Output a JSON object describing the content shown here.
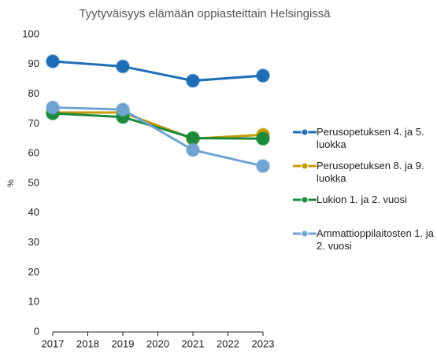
{
  "chart_data": {
    "type": "line",
    "title": "Tyytyväisyys elämään oppiasteittain Helsingissä",
    "y_label": "%",
    "x": [
      2017,
      2019,
      2021,
      2023
    ],
    "xlim": [
      2017,
      2023
    ],
    "xticks": [
      2017,
      2018,
      2019,
      2020,
      2021,
      2022,
      2023
    ],
    "ylim": [
      0,
      100
    ],
    "yticks": [
      0,
      10,
      20,
      30,
      40,
      50,
      60,
      70,
      80,
      90,
      100
    ],
    "series": [
      {
        "name": "Perusopetuksen 4. ja 5. luokka",
        "color": "#1f6db5",
        "values": [
          91,
          89.3,
          84.5,
          86.2
        ]
      },
      {
        "name": "Perusopetuksen 8. ja 9. luokka",
        "color": "#c49a06",
        "values": [
          73.8,
          73.8,
          65,
          66.3
        ]
      },
      {
        "name": "Lukion 1. ja 2. vuosi",
        "color": "#1b8a3c",
        "values": [
          73.5,
          72.3,
          65.2,
          65
        ]
      },
      {
        "name": "Ammattioppilaitosten 1. ja 2. vuosi",
        "color": "#6ea3d2",
        "values": [
          75.5,
          74.8,
          61.2,
          55.8
        ]
      }
    ]
  }
}
